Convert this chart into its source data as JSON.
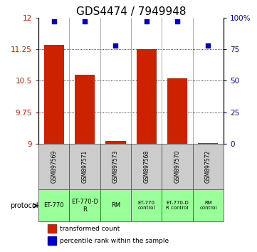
{
  "title": "GDS4474 / 7949948",
  "samples": [
    "GSM897569",
    "GSM897571",
    "GSM897573",
    "GSM897568",
    "GSM897570",
    "GSM897572"
  ],
  "bar_values": [
    11.35,
    10.65,
    9.07,
    11.25,
    10.55,
    9.02
  ],
  "percentile_values": [
    97,
    97,
    78,
    97,
    97,
    78
  ],
  "bar_color": "#cc2200",
  "dot_color": "#0000cc",
  "ylim_left": [
    9,
    12
  ],
  "ylim_right": [
    0,
    100
  ],
  "yticks_left": [
    9,
    9.75,
    10.5,
    11.25,
    12
  ],
  "yticks_right": [
    0,
    25,
    50,
    75,
    100
  ],
  "ytick_labels_left": [
    "9",
    "9.75",
    "10.5",
    "11.25",
    "12"
  ],
  "ytick_labels_right": [
    "0",
    "25",
    "50",
    "75",
    "100%"
  ],
  "protocol_labels": [
    "ET-770",
    "ET-770-D\nR",
    "RM",
    "ET-770\ncontrol",
    "ET-770-D\nR control",
    "RM\ncontrol"
  ],
  "sample_bg_color": "#cccccc",
  "proto_bg_color": "#99ff99",
  "legend_bar_label": "transformed count",
  "legend_dot_label": "percentile rank within the sample",
  "bar_width": 0.65,
  "title_fontsize": 11,
  "tick_fontsize": 7.5
}
